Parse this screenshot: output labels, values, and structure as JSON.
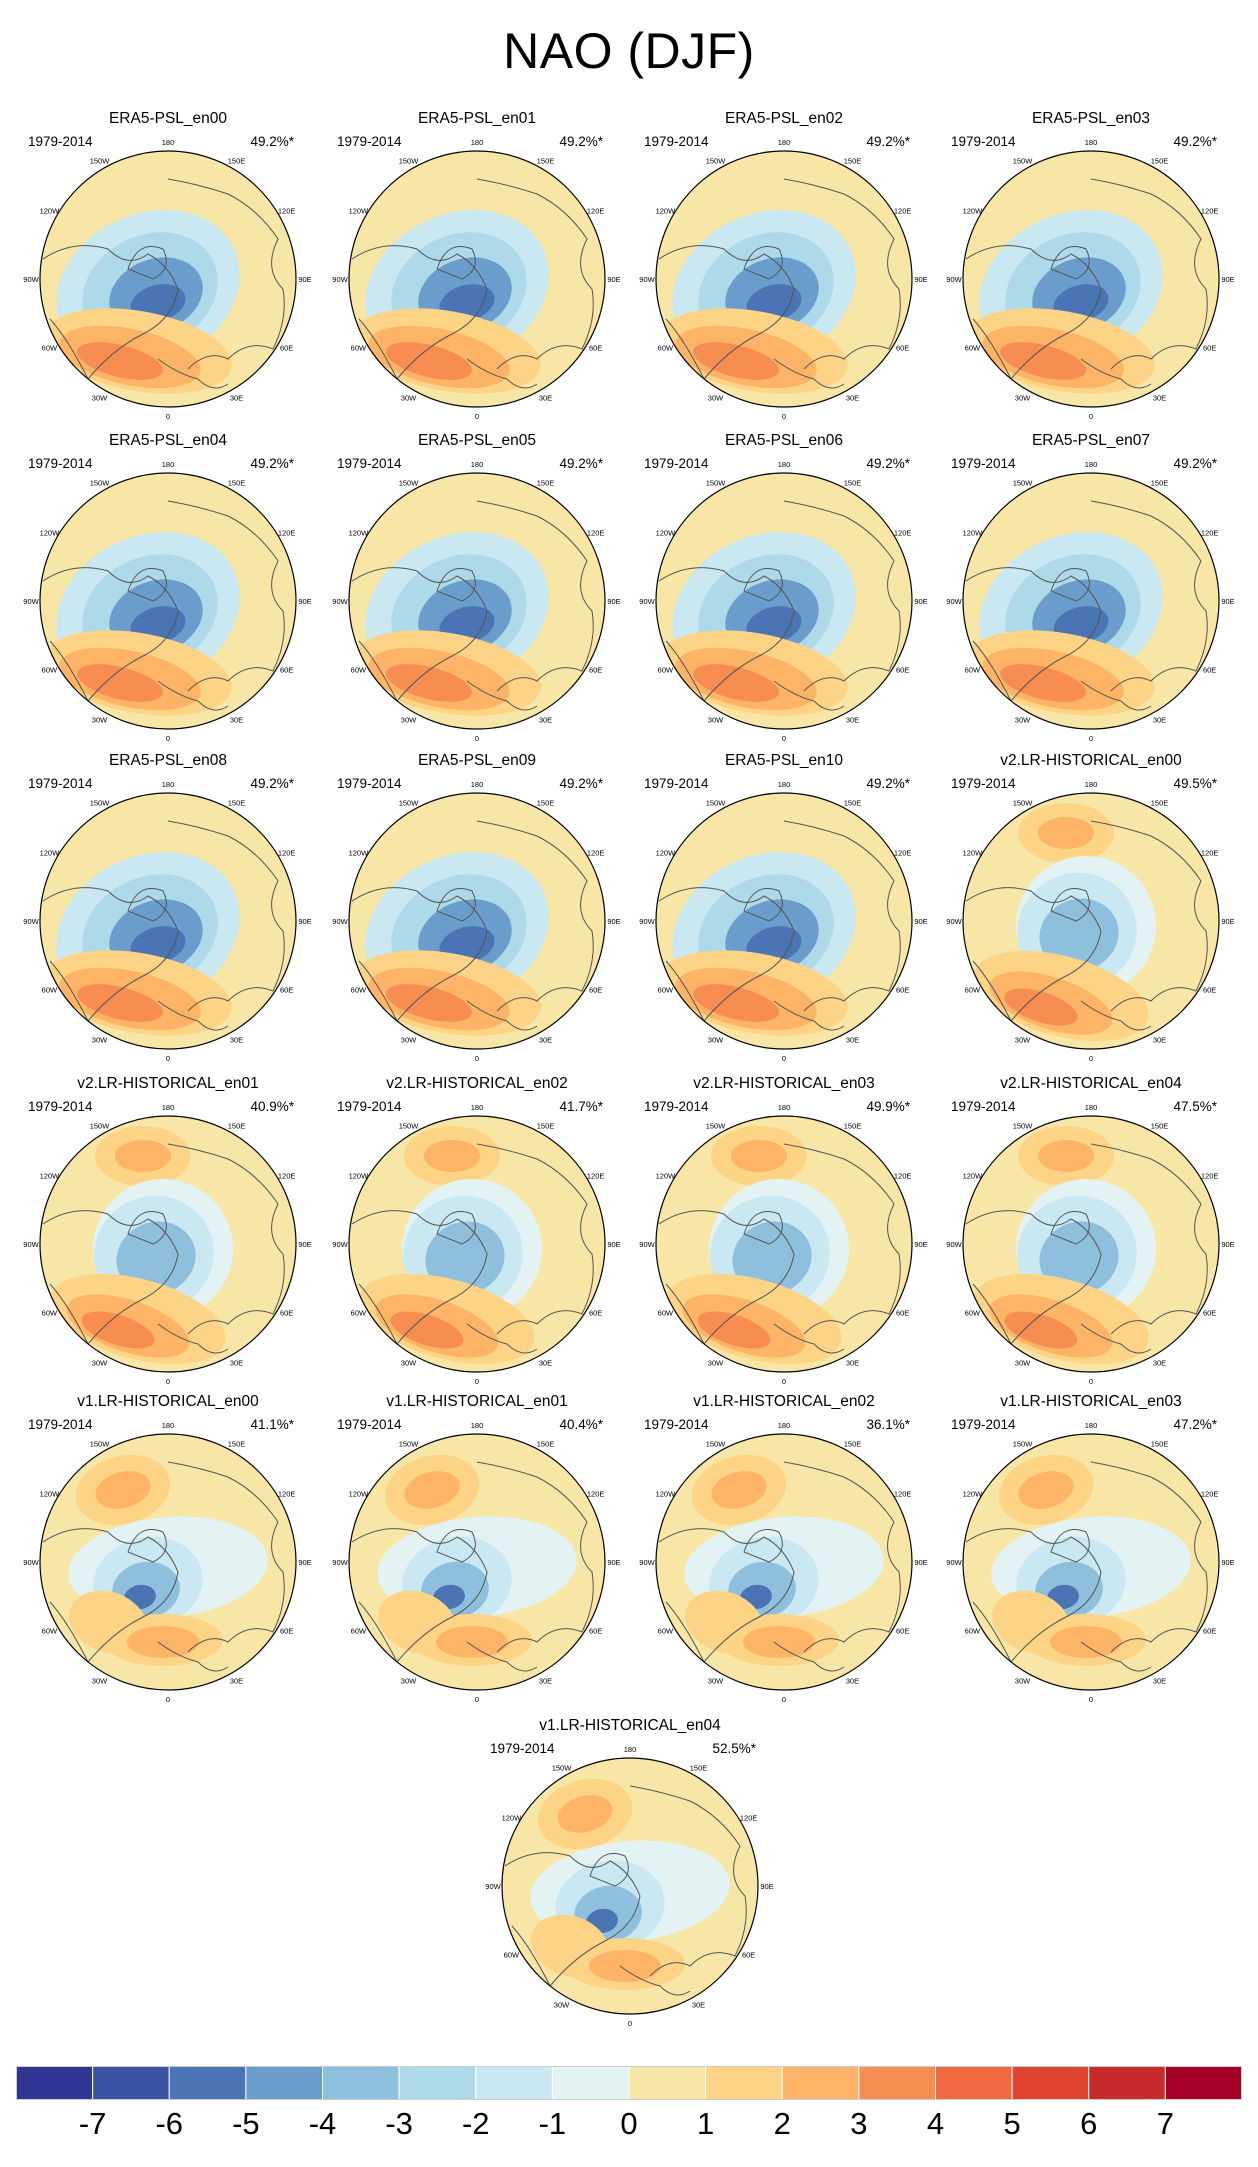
{
  "chart_data": {
    "type": "polar-contour-map-grid",
    "title": "NAO (DJF)",
    "colorbar": {
      "levels": [
        "-7",
        "-6",
        "-5",
        "-4",
        "-3",
        "-2",
        "-1",
        "0",
        "1",
        "2",
        "3",
        "4",
        "5",
        "6",
        "7"
      ],
      "colors": [
        "#313695",
        "#3a54a4",
        "#4a74b4",
        "#6a9dcb",
        "#8ec0de",
        "#add9e9",
        "#c9e8f1",
        "#e3f3f4",
        "#f7e6a6",
        "#fdd485",
        "#fdb466",
        "#f88d52",
        "#f26841",
        "#e04430",
        "#c72a2a",
        "#a50026"
      ]
    },
    "longitude_labels": [
      "180",
      "150E",
      "120E",
      "90E",
      "60E",
      "30E",
      "0",
      "30W",
      "60W",
      "90W",
      "120W",
      "150W"
    ],
    "panels": [
      {
        "title": "ERA5-PSL_en00",
        "period": "1979-2014",
        "variance": "49.2%*"
      },
      {
        "title": "ERA5-PSL_en01",
        "period": "1979-2014",
        "variance": "49.2%*"
      },
      {
        "title": "ERA5-PSL_en02",
        "period": "1979-2014",
        "variance": "49.2%*"
      },
      {
        "title": "ERA5-PSL_en03",
        "period": "1979-2014",
        "variance": "49.2%*"
      },
      {
        "title": "ERA5-PSL_en04",
        "period": "1979-2014",
        "variance": "49.2%*"
      },
      {
        "title": "ERA5-PSL_en05",
        "period": "1979-2014",
        "variance": "49.2%*"
      },
      {
        "title": "ERA5-PSL_en06",
        "period": "1979-2014",
        "variance": "49.2%*"
      },
      {
        "title": "ERA5-PSL_en07",
        "period": "1979-2014",
        "variance": "49.2%*"
      },
      {
        "title": "ERA5-PSL_en08",
        "period": "1979-2014",
        "variance": "49.2%*"
      },
      {
        "title": "ERA5-PSL_en09",
        "period": "1979-2014",
        "variance": "49.2%*"
      },
      {
        "title": "ERA5-PSL_en10",
        "period": "1979-2014",
        "variance": "49.2%*"
      },
      {
        "title": "v2.LR-HISTORICAL_en00",
        "period": "1979-2014",
        "variance": "49.5%*"
      },
      {
        "title": "v2.LR-HISTORICAL_en01",
        "period": "1979-2014",
        "variance": "40.9%*"
      },
      {
        "title": "v2.LR-HISTORICAL_en02",
        "period": "1979-2014",
        "variance": "41.7%*"
      },
      {
        "title": "v2.LR-HISTORICAL_en03",
        "period": "1979-2014",
        "variance": "49.9%*"
      },
      {
        "title": "v2.LR-HISTORICAL_en04",
        "period": "1979-2014",
        "variance": "47.5%*"
      },
      {
        "title": "v1.LR-HISTORICAL_en00",
        "period": "1979-2014",
        "variance": "41.1%*"
      },
      {
        "title": "v1.LR-HISTORICAL_en01",
        "period": "1979-2014",
        "variance": "40.4%*"
      },
      {
        "title": "v1.LR-HISTORICAL_en02",
        "period": "1979-2014",
        "variance": "36.1%*"
      },
      {
        "title": "v1.LR-HISTORICAL_en03",
        "period": "1979-2014",
        "variance": "47.2%*"
      },
      {
        "title": "v1.LR-HISTORICAL_en04",
        "period": "1979-2014",
        "variance": "52.5%*"
      }
    ]
  }
}
